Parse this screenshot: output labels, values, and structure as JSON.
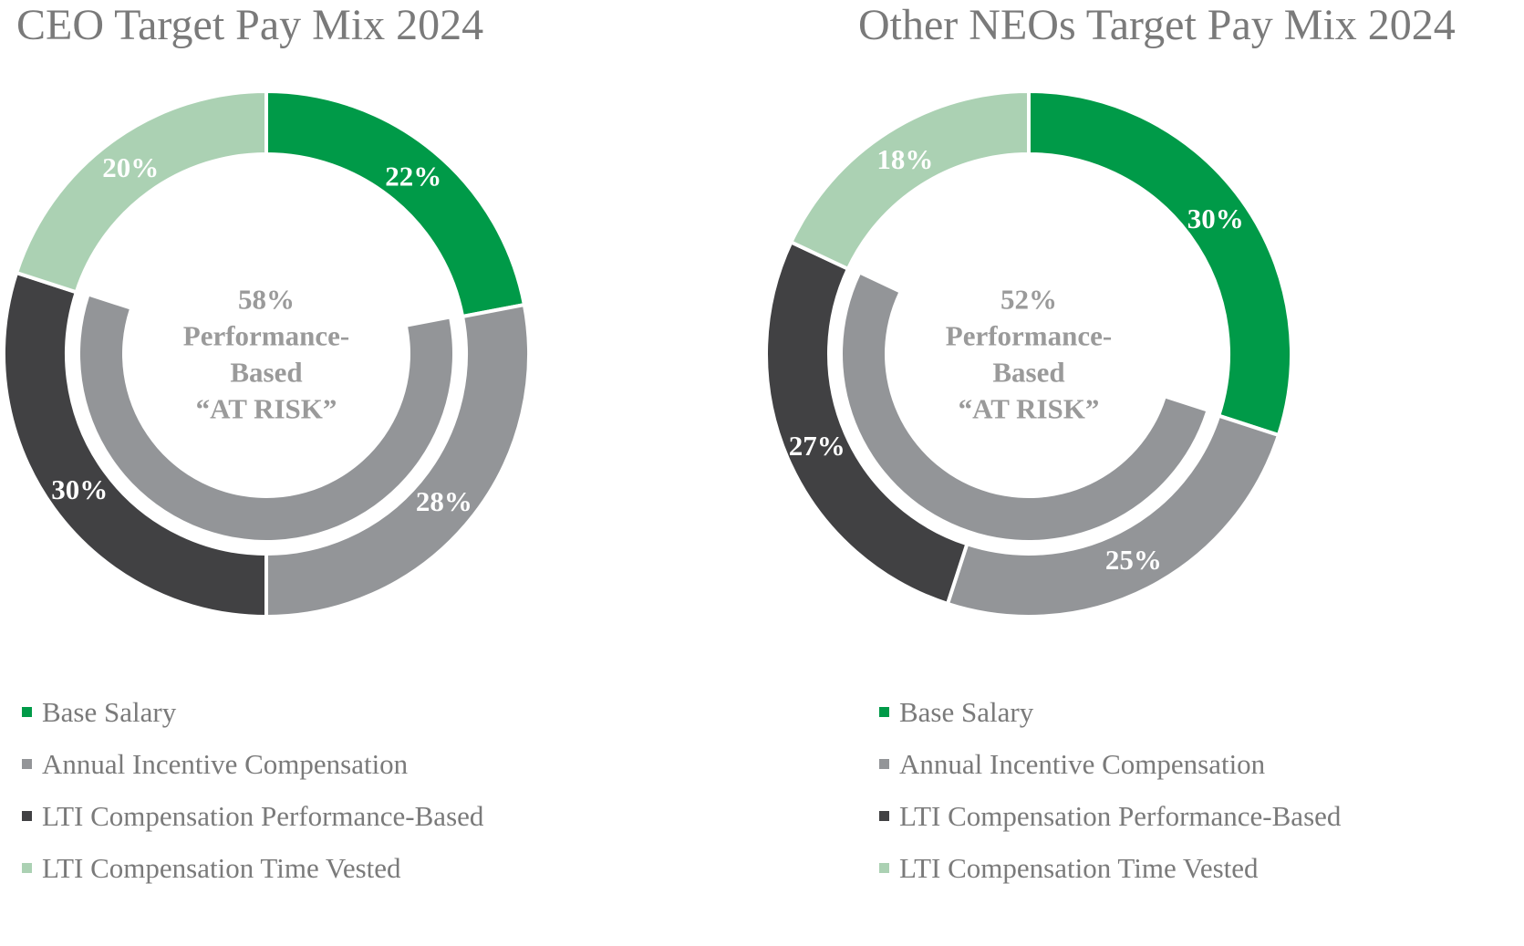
{
  "chart_data": [
    {
      "type": "donut",
      "title": "CEO Target Pay Mix 2024",
      "categories": [
        "Base Salary",
        "Annual Incentive Compensation",
        "LTI Compensation Performance-Based",
        "LTI Compensation Time Vested"
      ],
      "values": [
        22,
        28,
        30,
        20
      ],
      "value_labels": [
        "22%",
        "28%",
        "30%",
        "20%"
      ],
      "colors": [
        "#009a48",
        "#939598",
        "#414143",
        "#abd1b3"
      ],
      "inner_ring": {
        "values": [
          58
        ],
        "color": "#939598",
        "text": [
          "58%",
          "Performance-",
          "Based",
          "“AT RISK”"
        ]
      },
      "legend": "bottom-left"
    },
    {
      "type": "donut",
      "title": "Other NEOs Target Pay Mix 2024",
      "categories": [
        "Base Salary",
        "Annual Incentive Compensation",
        "LTI Compensation Performance-Based",
        "LTI Compensation Time Vested"
      ],
      "values": [
        30,
        25,
        27,
        18
      ],
      "value_labels": [
        "30%",
        "25%",
        "27%",
        "18%"
      ],
      "colors": [
        "#009a48",
        "#939598",
        "#414143",
        "#abd1b3"
      ],
      "inner_ring": {
        "values": [
          52
        ],
        "color": "#939598",
        "text": [
          "52%",
          "Performance-",
          "Based",
          "“AT RISK”"
        ]
      },
      "legend": "bottom-left"
    }
  ]
}
